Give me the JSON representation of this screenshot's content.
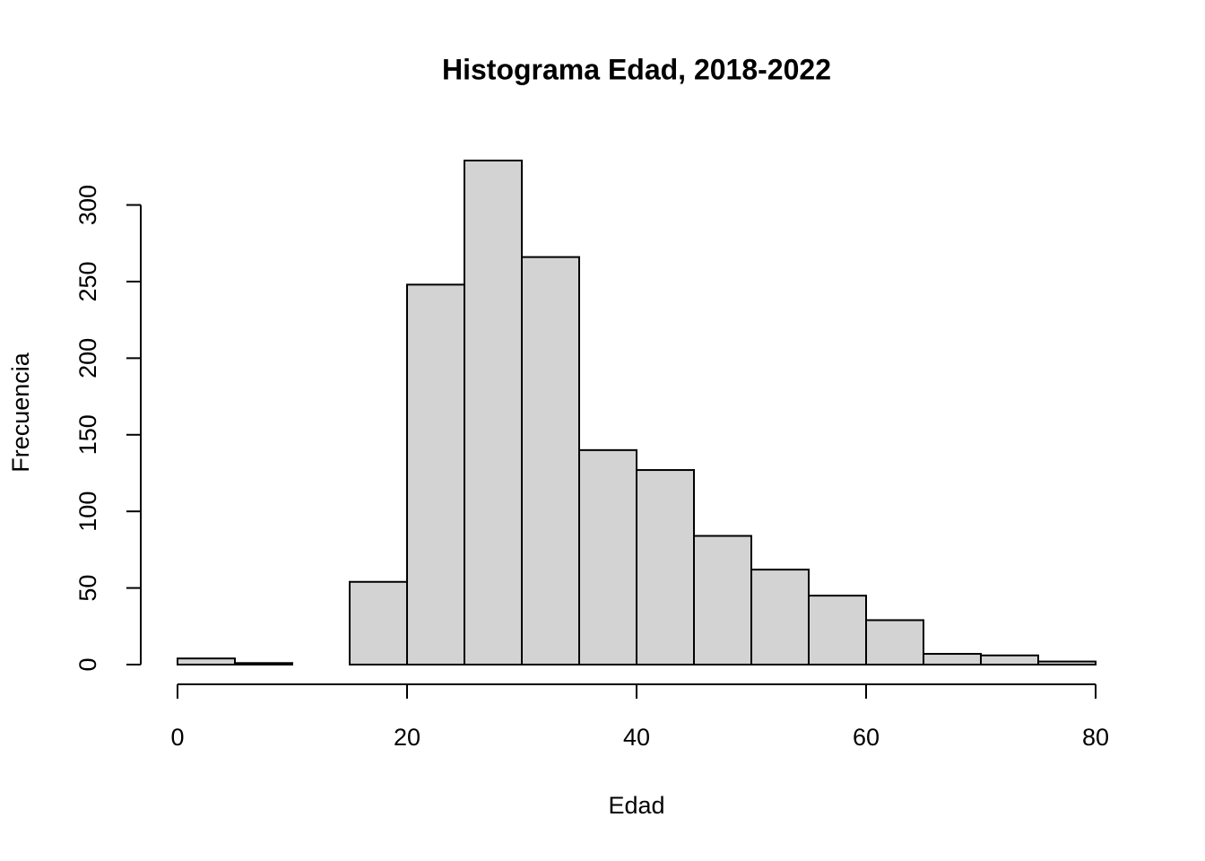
{
  "chart_data": {
    "type": "histogram",
    "title": "Histograma Edad, 2018-2022",
    "x_label": "Edad",
    "y_label": "Frecuencia",
    "bins": [
      0,
      5,
      10,
      15,
      20,
      25,
      30,
      35,
      40,
      45,
      50,
      55,
      60,
      65,
      70,
      75,
      80
    ],
    "counts": [
      4,
      1,
      0,
      54,
      248,
      329,
      266,
      140,
      127,
      84,
      62,
      45,
      29,
      7,
      6,
      2
    ],
    "color": "#d3d3d3",
    "xlim": [
      0,
      80
    ],
    "ylim": [
      0,
      329
    ],
    "xticks": [
      0,
      20,
      40,
      60,
      80
    ],
    "yticks": [
      0,
      50,
      100,
      150,
      200,
      250,
      300
    ]
  }
}
